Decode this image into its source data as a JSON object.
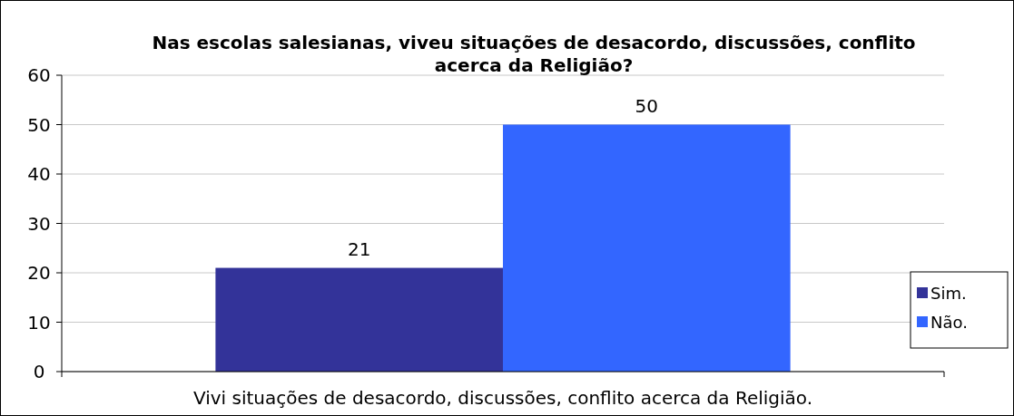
{
  "chart_data": {
    "type": "bar",
    "title": "Nas escolas salesianas, viveu situações de desacordo, discussões, conflito acerca da Religião?",
    "categories": [
      "Vivi situações de desacordo, discussões, conflito acerca da Religião."
    ],
    "series": [
      {
        "name": "Sim.",
        "color": "#333399",
        "values": [
          21
        ]
      },
      {
        "name": "Não.",
        "color": "#3366ff",
        "values": [
          50
        ]
      }
    ],
    "ylim": [
      0,
      60
    ],
    "yticks": [
      0,
      10,
      20,
      30,
      40,
      50,
      60
    ],
    "grid": "y",
    "legend": "right",
    "data_labels": true
  }
}
